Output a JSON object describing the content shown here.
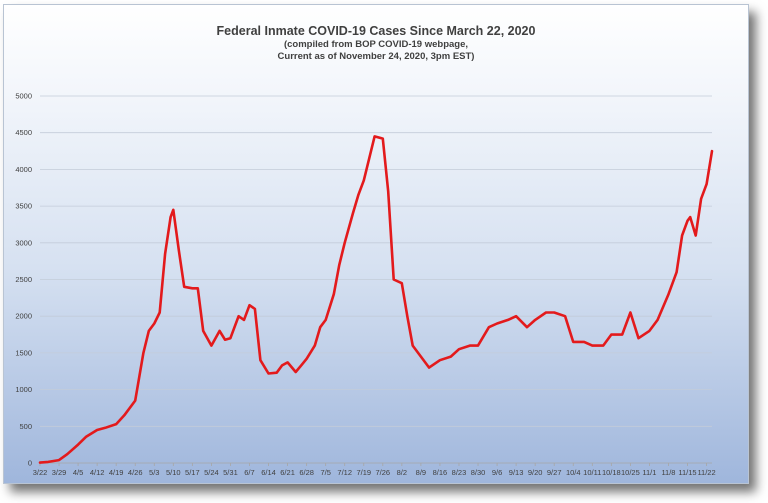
{
  "chart_data": {
    "type": "line",
    "title": "Federal Inmate COVID-19 Cases Since March 22, 2020",
    "subtitle_lines": [
      "(compiled from BOP COVID-19 webpage,",
      "Current as of November 24, 2020, 3pm EST)"
    ],
    "xlabel": "",
    "ylabel": "",
    "ylim": [
      0,
      5000
    ],
    "yticks": [
      0,
      500,
      1000,
      1500,
      2000,
      2500,
      3000,
      3500,
      4000,
      4500,
      5000
    ],
    "xlim": [
      "3/22",
      "11/24"
    ],
    "xticks": [
      "3/22",
      "3/29",
      "4/5",
      "4/12",
      "4/19",
      "4/26",
      "5/3",
      "5/10",
      "5/17",
      "5/24",
      "5/31",
      "6/7",
      "6/14",
      "6/21",
      "6/28",
      "7/5",
      "7/12",
      "7/19",
      "7/26",
      "8/2",
      "8/9",
      "8/16",
      "8/23",
      "8/30",
      "9/6",
      "9/13",
      "9/20",
      "9/27",
      "10/4",
      "10/11",
      "10/18",
      "10/25",
      "11/1",
      "11/8",
      "11/15",
      "11/22"
    ],
    "grid": true,
    "legend": "none",
    "line_color": "#e31a1c",
    "series": [
      {
        "x": [
          "3/22",
          "3/25",
          "3/29",
          "4/1",
          "4/5",
          "4/8",
          "4/12",
          "4/15",
          "4/19",
          "4/22",
          "4/26",
          "4/29",
          "5/1",
          "5/3",
          "5/5",
          "5/7",
          "5/9",
          "5/10",
          "5/12",
          "5/14",
          "5/17",
          "5/19",
          "5/21",
          "5/24",
          "5/27",
          "5/29",
          "5/31",
          "6/3",
          "6/5",
          "6/7",
          "6/9",
          "6/11",
          "6/14",
          "6/17",
          "6/19",
          "6/21",
          "6/24",
          "6/26",
          "6/28",
          "7/1",
          "7/3",
          "7/5",
          "7/8",
          "7/10",
          "7/12",
          "7/15",
          "7/17",
          "7/19",
          "7/21",
          "7/23",
          "7/26",
          "7/28",
          "7/30",
          "8/2",
          "8/4",
          "8/6",
          "8/9",
          "8/12",
          "8/16",
          "8/20",
          "8/23",
          "8/27",
          "8/30",
          "9/3",
          "9/6",
          "9/10",
          "9/13",
          "9/17",
          "9/20",
          "9/24",
          "9/27",
          "10/1",
          "10/4",
          "10/8",
          "10/11",
          "10/15",
          "10/18",
          "10/22",
          "10/25",
          "10/28",
          "11/1",
          "11/4",
          "11/8",
          "11/11",
          "11/13",
          "11/15",
          "11/16",
          "11/18",
          "11/20",
          "11/22",
          "11/24"
        ],
        "values": [
          5,
          15,
          40,
          120,
          250,
          360,
          450,
          480,
          530,
          650,
          850,
          1500,
          1800,
          1900,
          2050,
          2850,
          3350,
          3450,
          2900,
          2400,
          2380,
          2380,
          1800,
          1600,
          1800,
          1680,
          1700,
          2000,
          1950,
          2150,
          2100,
          1400,
          1220,
          1230,
          1330,
          1370,
          1240,
          1330,
          1420,
          1600,
          1850,
          1950,
          2300,
          2700,
          3000,
          3400,
          3650,
          3850,
          4150,
          4450,
          4420,
          3700,
          2500,
          2450,
          2000,
          1600,
          1450,
          1300,
          1400,
          1450,
          1550,
          1600,
          1600,
          1850,
          1900,
          1950,
          2000,
          1850,
          1950,
          2050,
          2050,
          2000,
          1650,
          1650,
          1600,
          1600,
          1750,
          1750,
          2050,
          1700,
          1800,
          1950,
          2300,
          2600,
          3100,
          3300,
          3350,
          3100,
          3600,
          3800,
          4250
        ]
      }
    ]
  }
}
